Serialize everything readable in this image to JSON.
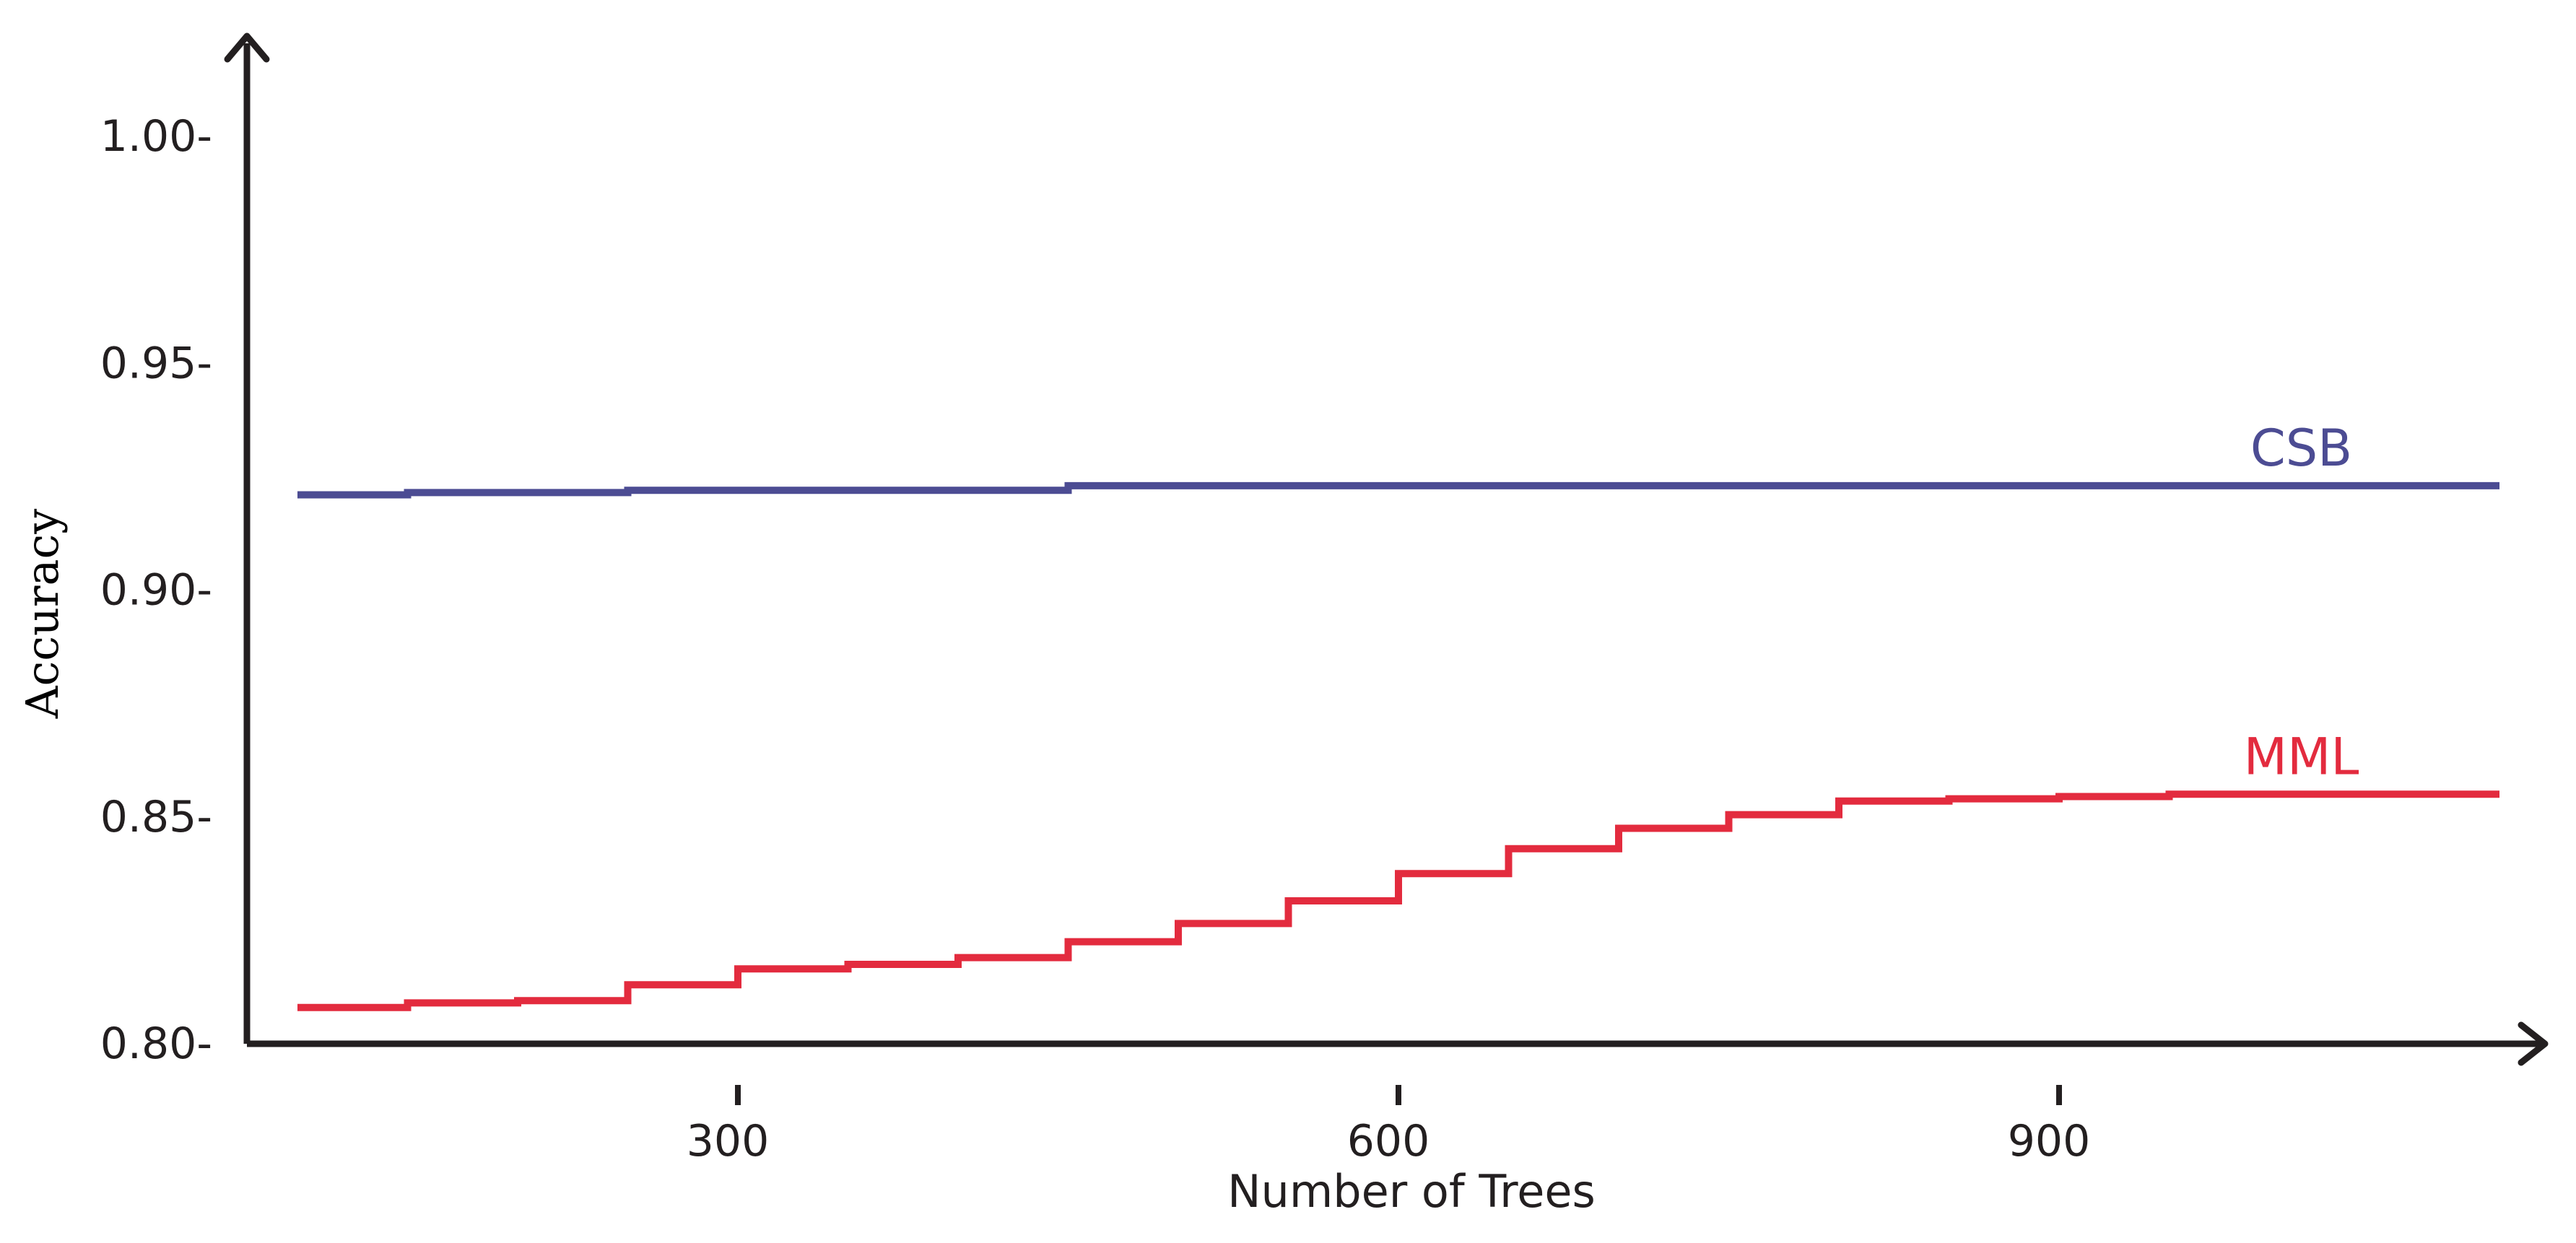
{
  "chart_data": {
    "type": "line",
    "title": "",
    "xlabel": "Number of Trees",
    "ylabel": "Accuracy",
    "xlim": [
      76,
      1109
    ],
    "ylim": [
      0.8,
      1.02
    ],
    "x_ticks": [
      300,
      600,
      900
    ],
    "x_tick_labels": [
      "300",
      "600",
      "900"
    ],
    "y_ticks": [
      0.8,
      0.85,
      0.9,
      0.95,
      1.0
    ],
    "y_tick_labels": [
      "0.80-",
      "0.85-",
      "0.90-",
      "0.95-",
      "1.00-"
    ],
    "grid": false,
    "legend": "inline labels",
    "series": [
      {
        "name": "CSB",
        "color": "#4c4c93",
        "x": [
          100,
          150,
          250,
          450,
          1100
        ],
        "y": [
          0.921,
          0.9215,
          0.922,
          0.923,
          0.923
        ]
      },
      {
        "name": "MML",
        "color": "#e32b3e",
        "x": [
          100,
          150,
          200,
          250,
          300,
          350,
          400,
          450,
          500,
          550,
          600,
          650,
          700,
          750,
          800,
          850,
          900,
          950,
          1000,
          1100
        ],
        "y": [
          0.808,
          0.809,
          0.8095,
          0.813,
          0.8165,
          0.8175,
          0.819,
          0.8225,
          0.8265,
          0.8315,
          0.8375,
          0.843,
          0.8475,
          0.8505,
          0.8535,
          0.854,
          0.8545,
          0.855,
          0.855,
          0.855
        ]
      }
    ]
  }
}
